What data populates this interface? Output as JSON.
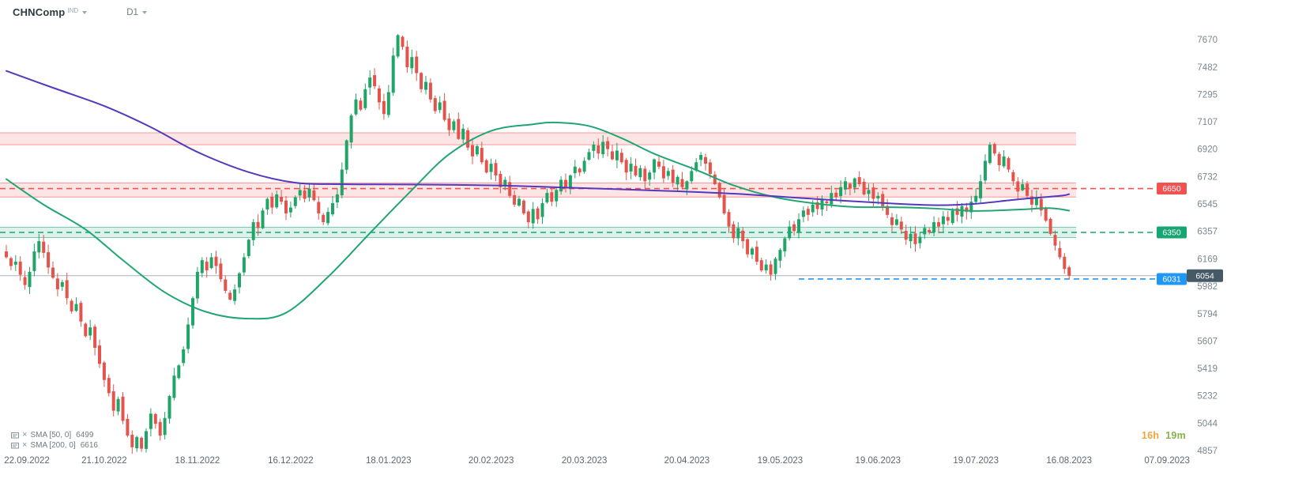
{
  "header": {
    "symbol": "CHNComp",
    "market": "IND",
    "timeframe": "D1"
  },
  "legend": [
    {
      "label": "SMA [50, 0]",
      "value": "6499"
    },
    {
      "label": "SMA [200, 0]",
      "value": "6616"
    }
  ],
  "countdown": {
    "hours": "16h",
    "minutes": "19m",
    "hours_color": "#f0a43c",
    "minutes_color": "#86b34a"
  },
  "chart_data": {
    "type": "candlestick",
    "symbol": "CHNComp",
    "timeframe": "D1",
    "ylim": [
      4820,
      7790
    ],
    "y_axis_ticks": [
      7670,
      7482,
      7295,
      7107,
      6920,
      6732,
      6545,
      6357,
      6169,
      5982,
      5794,
      5607,
      5419,
      5232,
      5044,
      4857
    ],
    "x_axis_labels": [
      {
        "label": "22.09.2022",
        "i": 0
      },
      {
        "label": "21.10.2022",
        "i": 21
      },
      {
        "label": "18.11.2022",
        "i": 41
      },
      {
        "label": "16.12.2022",
        "i": 61
      },
      {
        "label": "18.01.2023",
        "i": 82
      },
      {
        "label": "20.02.2023",
        "i": 104
      },
      {
        "label": "20.03.2023",
        "i": 124
      },
      {
        "label": "20.04.2023",
        "i": 146
      },
      {
        "label": "19.05.2023",
        "i": 166
      },
      {
        "label": "19.06.2023",
        "i": 187
      },
      {
        "label": "19.07.2023",
        "i": 208
      },
      {
        "label": "16.08.2023",
        "i": 228
      },
      {
        "label": "07.09.2023",
        "i": 249
      }
    ],
    "first_open": 6220,
    "closes": [
      6180,
      6120,
      6150,
      6060,
      5990,
      6080,
      6220,
      6290,
      6210,
      6110,
      6040,
      5960,
      6010,
      5900,
      5810,
      5860,
      5740,
      5640,
      5700,
      5560,
      5450,
      5340,
      5250,
      5130,
      5210,
      5060,
      4960,
      4880,
      4950,
      4870,
      4990,
      5110,
      5040,
      4960,
      5080,
      5230,
      5370,
      5440,
      5550,
      5720,
      5900,
      6080,
      6160,
      6090,
      6180,
      6120,
      6030,
      5950,
      5890,
      5960,
      6070,
      6180,
      6300,
      6420,
      6380,
      6500,
      6580,
      6520,
      6610,
      6560,
      6480,
      6520,
      6590,
      6640,
      6580,
      6650,
      6570,
      6480,
      6420,
      6490,
      6550,
      6610,
      6780,
      6980,
      7150,
      7260,
      7190,
      7330,
      7410,
      7350,
      7240,
      7160,
      7310,
      7560,
      7700,
      7620,
      7480,
      7550,
      7440,
      7330,
      7380,
      7260,
      7180,
      7240,
      7120,
      7050,
      7110,
      6990,
      7060,
      6930,
      6870,
      6940,
      6830,
      6760,
      6820,
      6740,
      6660,
      6710,
      6600,
      6540,
      6580,
      6480,
      6420,
      6510,
      6440,
      6550,
      6620,
      6560,
      6640,
      6710,
      6660,
      6740,
      6800,
      6760,
      6840,
      6900,
      6950,
      6890,
      6970,
      6920,
      6850,
      6910,
      6830,
      6760,
      6820,
      6740,
      6790,
      6700,
      6760,
      6850,
      6800,
      6720,
      6770,
      6690,
      6730,
      6660,
      6700,
      6770,
      6830,
      6880,
      6820,
      6750,
      6680,
      6590,
      6480,
      6390,
      6310,
      6380,
      6290,
      6200,
      6240,
      6150,
      6090,
      6130,
      6060,
      6170,
      6230,
      6310,
      6390,
      6360,
      6440,
      6500,
      6470,
      6540,
      6510,
      6580,
      6550,
      6620,
      6590,
      6660,
      6700,
      6650,
      6720,
      6680,
      6610,
      6640,
      6580,
      6600,
      6530,
      6470,
      6400,
      6440,
      6370,
      6300,
      6340,
      6270,
      6320,
      6380,
      6350,
      6420,
      6390,
      6460,
      6430,
      6500,
      6470,
      6530,
      6490,
      6560,
      6600,
      6700,
      6840,
      6950,
      6890,
      6810,
      6870,
      6780,
      6700,
      6630,
      6680,
      6600,
      6540,
      6590,
      6500,
      6430,
      6340,
      6260,
      6180,
      6100,
      6054
    ],
    "candle_colors": {
      "up": "#1fa567",
      "down": "#e4544d"
    },
    "sma50": {
      "name": "SMA [50, 0]",
      "value": 6499,
      "color": "#21a673",
      "points": [
        [
          0,
          6715
        ],
        [
          8,
          6540
        ],
        [
          17,
          6370
        ],
        [
          25,
          6160
        ],
        [
          34,
          5940
        ],
        [
          43,
          5805
        ],
        [
          52,
          5760
        ],
        [
          60,
          5800
        ],
        [
          69,
          6045
        ],
        [
          78,
          6345
        ],
        [
          87,
          6640
        ],
        [
          95,
          6885
        ],
        [
          104,
          7045
        ],
        [
          113,
          7090
        ],
        [
          118,
          7102
        ],
        [
          125,
          7078
        ],
        [
          132,
          6995
        ],
        [
          139,
          6888
        ],
        [
          148,
          6778
        ],
        [
          156,
          6672
        ],
        [
          165,
          6590
        ],
        [
          174,
          6546
        ],
        [
          182,
          6524
        ],
        [
          191,
          6522
        ],
        [
          200,
          6512
        ],
        [
          208,
          6497
        ],
        [
          217,
          6506
        ],
        [
          224,
          6516
        ],
        [
          228,
          6499
        ]
      ]
    },
    "sma200": {
      "name": "SMA [200, 0]",
      "value": 6616,
      "color": "#5438bd",
      "points": [
        [
          0,
          7455
        ],
        [
          10,
          7340
        ],
        [
          21,
          7215
        ],
        [
          31,
          7070
        ],
        [
          41,
          6900
        ],
        [
          52,
          6762
        ],
        [
          62,
          6690
        ],
        [
          72,
          6680
        ],
        [
          86,
          6678
        ],
        [
          104,
          6672
        ],
        [
          121,
          6656
        ],
        [
          139,
          6637
        ],
        [
          156,
          6615
        ],
        [
          174,
          6578
        ],
        [
          191,
          6546
        ],
        [
          200,
          6536
        ],
        [
          208,
          6546
        ],
        [
          217,
          6576
        ],
        [
          226,
          6600
        ],
        [
          228,
          6612
        ]
      ]
    },
    "levels": {
      "resistance_zone_upper": {
        "from": 6950,
        "to": 7032,
        "color": "#f0524f"
      },
      "resistance_zone_6650": {
        "from": 6592,
        "to": 6688,
        "line": 6650,
        "label": "6650",
        "color": "#f0524f"
      },
      "support_zone_6350": {
        "from": 6315,
        "to": 6385,
        "line": 6350,
        "label": "6350",
        "color": "#17a673"
      },
      "support_line_6031": {
        "line": 6031,
        "label": "6031",
        "color": "#2196f3",
        "start_i": 170
      },
      "current_price": {
        "value": 6054,
        "label": "6054",
        "color": "#455a64"
      }
    },
    "legend_position": "bottom-left",
    "grid": false
  }
}
